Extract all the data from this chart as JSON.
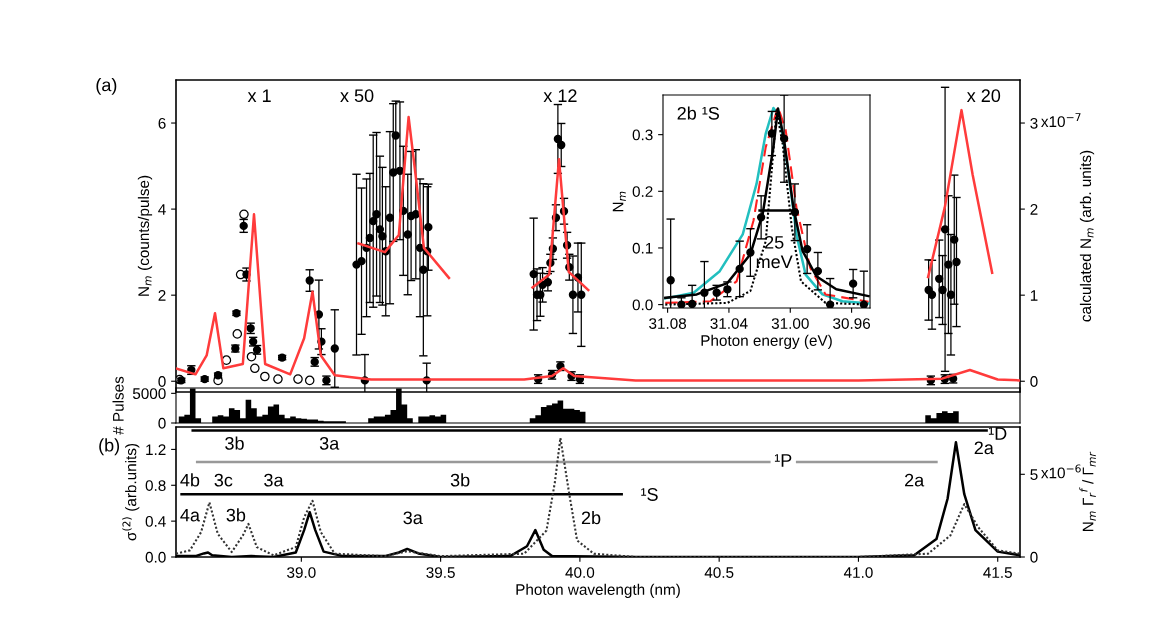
{
  "chart_data": [
    {
      "type": "scatter",
      "ylabel": "N$_{m}$ (counts/pulse)",
      "y2label": "calculated N$_{m}$ (arb. units)",
      "xlim": [
        38.55,
        41.58
      ],
      "ylim": [
        -0.25,
        7.0
      ],
      "yticks": [
        0,
        2,
        4,
        6
      ],
      "y2lim": [
        -0.125,
        3.5
      ],
      "y2ticks": [
        0,
        1,
        2,
        3
      ],
      "tick_labels": "y",
      "annotations": [
        "(a)",
        "x 1",
        "x 50",
        "x 12",
        "x 20",
        "x10$^{−7}$"
      ],
      "series": [
        {
          "type": "line",
          "axis": "y2",
          "color": "#ff3b3b",
          "marker": "none",
          "x": [
            38.55,
            38.62,
            38.66,
            38.69,
            38.72,
            38.79,
            38.83,
            38.87,
            38.96,
            39.01,
            39.04,
            39.07,
            39.12,
            39.25,
            39.5,
            39.8,
            39.9,
            39.94,
            39.98,
            40.2,
            41.0,
            41.3,
            41.4,
            41.5,
            41.58
          ],
          "values": [
            0.15,
            0.08,
            0.3,
            0.79,
            0.15,
            0.2,
            1.94,
            0.2,
            0.08,
            0.5,
            1.04,
            0.3,
            0.07,
            0.02,
            0.02,
            0.02,
            0.06,
            0.15,
            0.06,
            0.01,
            0.01,
            0.03,
            0.13,
            0.02,
            0.01
          ]
        },
        {
          "type": "line",
          "axis": "y2",
          "color": "#ff3b3b",
          "marker": "none",
          "x": [
            39.205,
            39.3,
            39.35,
            39.385,
            39.41,
            39.44,
            39.53
          ],
          "values": [
            1.6,
            1.5,
            1.7,
            3.07,
            2.4,
            1.55,
            1.2
          ]
        },
        {
          "type": "line",
          "axis": "y2",
          "color": "#ff3b3b",
          "marker": "none",
          "x": [
            39.83,
            39.89,
            39.925,
            39.96,
            40.03
          ],
          "values": [
            1.09,
            1.24,
            2.58,
            1.27,
            1.06
          ]
        },
        {
          "type": "line",
          "axis": "y2",
          "color": "#ff3b3b",
          "marker": "none",
          "x": [
            41.25,
            41.31,
            41.37,
            41.41,
            41.48
          ],
          "values": [
            1.21,
            2.02,
            3.15,
            2.4,
            1.26
          ]
        },
        {
          "type": "scatter",
          "color": "#ffffff",
          "marker": "circle",
          "x": [
            38.563,
            38.701,
            38.731,
            38.77,
            38.782,
            38.794,
            38.821,
            38.833,
            38.869,
            38.916,
            38.988,
            39.03
          ],
          "values": [
            0.04,
            0.02,
            0.49,
            1.1,
            2.48,
            3.88,
            0.57,
            0.3,
            0.11,
            0.05,
            0.05,
            0.02
          ]
        },
        {
          "type": "scatter",
          "color": "#000000",
          "marker": "circle",
          "x": [
            38.569,
            38.605,
            38.653,
            38.701,
            38.763,
            38.767,
            38.793,
            38.803,
            38.818,
            38.827,
            38.841,
            38.931,
            39.03,
            39.048,
            39.063,
            39.072,
            39.09,
            39.12,
            39.198,
            39.216,
            39.228,
            39.234,
            39.246,
            39.258,
            39.27,
            39.282,
            39.291,
            39.303,
            39.318,
            39.33,
            39.339,
            39.354,
            39.366,
            39.382,
            39.394,
            39.411,
            39.426,
            39.438,
            39.45,
            39.452,
            39.456,
            39.85,
            39.9,
            39.93,
            39.97,
            40.0,
            39.834,
            39.846,
            39.858,
            39.866,
            39.885,
            39.894,
            39.903,
            39.914,
            39.921,
            39.933,
            39.943,
            39.954,
            39.962,
            39.975,
            39.993,
            40.005,
            41.26,
            41.31,
            41.34,
            41.252,
            41.264,
            41.29,
            41.302,
            41.311,
            41.323,
            41.332,
            41.344,
            41.352
          ],
          "values": [
            0.02,
            0.26,
            0.05,
            0.14,
            0.76,
            1.58,
            3.61,
            2.48,
            1.23,
            0.92,
            0.73,
            0.55,
            2.34,
            0.45,
            1.55,
            0.92,
            0.02,
            0.76,
            2.71,
            2.79,
            0.02,
            3.1,
            3.33,
            3.72,
            3.88,
            3.53,
            3.37,
            3.02,
            3.8,
            4.85,
            5.71,
            4.89,
            3.96,
            3.41,
            3.84,
            3.88,
            3.1,
            2.59,
            0.02,
            3.02,
            3.58,
            0.05,
            0.15,
            0.35,
            0.12,
            0.05,
            2.49,
            2.01,
            2.01,
            2.24,
            2.3,
            2.75,
            3.08,
            3.8,
            5.63,
            5.49,
            3.95,
            3.16,
            2.65,
            2.01,
            2.41,
            2.01,
            0.02,
            0.05,
            0.06,
            2.12,
            2.01,
            2.38,
            2.12,
            3.53,
            2.71,
            2.01,
            3.29,
            2.77
          ],
          "errors": [
            0.05,
            0.1,
            0.05,
            0.05,
            0.08,
            0.05,
            0.15,
            0.15,
            0.12,
            0.1,
            0.1,
            0.05,
            0.25,
            0.1,
            0.8,
            0.3,
            0.1,
            0.9,
            2.1,
            1.7,
            0.6,
            1.6,
            1.5,
            2.0,
            1.9,
            1.7,
            1.6,
            1.5,
            2.0,
            1.6,
            0.8,
            1.6,
            1.5,
            1.4,
            1.5,
            1.5,
            1.6,
            2.0,
            0.4,
            1.5,
            1.0,
            0.1,
            0.1,
            0.1,
            0.1,
            0.1,
            1.3,
            0.6,
            0.5,
            0.4,
            0.2,
            0.2,
            0.25,
            0.3,
            0.8,
            0.5,
            0.3,
            0.3,
            0.3,
            0.9,
            0.8,
            1.2,
            0.1,
            0.1,
            0.1,
            0.7,
            0.8,
            0.9,
            0.8,
            3.3,
            1.6,
            1.4,
            1.5,
            1.5
          ]
        }
      ]
    },
    {
      "type": "histogram",
      "ylabel": "# Pulses",
      "color": "#000000",
      "xlim": [
        38.55,
        41.58
      ],
      "ylim": [
        0,
        5900
      ],
      "yticks": [
        0,
        5000
      ],
      "tick_labels": "y",
      "bins": [
        38.56,
        38.58,
        38.6,
        38.62,
        38.64,
        38.66,
        38.68,
        38.7,
        38.72,
        38.74,
        38.76,
        38.78,
        38.8,
        38.82,
        38.84,
        38.86,
        38.88,
        38.9,
        38.92,
        38.94,
        38.96,
        38.98,
        39.0,
        39.02,
        39.04,
        39.06,
        39.08,
        39.1,
        39.16,
        39.24,
        39.26,
        39.28,
        39.3,
        39.32,
        39.34,
        39.36,
        39.38,
        39.4,
        39.42,
        39.44,
        39.46,
        39.48,
        39.5,
        39.52,
        39.82,
        39.84,
        39.86,
        39.88,
        39.9,
        39.92,
        39.94,
        39.96,
        39.98,
        40.0,
        40.02,
        41.24,
        41.26,
        41.28,
        41.3,
        41.32,
        41.34,
        41.36
      ],
      "values": [
        1100,
        1400,
        5800,
        800,
        0,
        0,
        1100,
        1300,
        1100,
        2500,
        2200,
        800,
        3900,
        2500,
        1100,
        1400,
        2800,
        3100,
        1400,
        800,
        1100,
        800,
        700,
        600,
        600,
        400,
        300,
        300,
        0,
        800,
        1100,
        1100,
        1400,
        2200,
        5800,
        3100,
        800,
        0,
        1100,
        1100,
        1300,
        1100,
        1400,
        0,
        800,
        1300,
        2700,
        3000,
        3300,
        3800,
        2400,
        2400,
        2200,
        1900,
        0,
        1300,
        800,
        1700,
        2000,
        1700,
        2000
      ]
    },
    {
      "type": "line",
      "xlabel": "Photon energy (eV)",
      "ylabel": "N$_{m}$",
      "xlim": [
        31.083,
        30.948
      ],
      "ylim": [
        -0.006,
        0.37
      ],
      "xticks": [
        31.08,
        31.04,
        {
          "value": 31.0,
          "label": "31.00"
        },
        30.96
      ],
      "yticks": [
        {
          "value": 0,
          "label": "0.0"
        },
        0.1,
        0.2,
        0.3
      ],
      "annotations": [
        "2b ¹S",
        "25\nmeV"
      ],
      "series": [
        {
          "color": "#22bfbf",
          "line_style": "solid",
          "x": [
            31.0815,
            31.063,
            31.046,
            31.031,
            31.022,
            31.016,
            31.011,
            31.007,
            31.001,
            30.996,
            30.99,
            30.979,
            30.966,
            30.949
          ],
          "values": [
            0.011,
            0.021,
            0.059,
            0.124,
            0.213,
            0.302,
            0.347,
            0.331,
            0.231,
            0.124,
            0.053,
            0.018,
            0.006,
            0.002
          ]
        },
        {
          "color": "#ff2020",
          "line_style": "dashed",
          "x": [
            31.0815,
            31.052,
            31.035,
            31.024,
            31.016,
            31.008,
            31.003,
            30.996,
            30.987,
            30.977,
            30.949
          ],
          "values": [
            0.003,
            0.006,
            0.041,
            0.148,
            0.278,
            0.349,
            0.308,
            0.172,
            0.065,
            0.018,
            0.005
          ]
        },
        {
          "color": "#000000",
          "line_style": "solid",
          "x": [
            31.0815,
            31.061,
            31.041,
            31.026,
            31.018,
            31.011,
            31.008,
            31.004,
            30.998,
            30.992,
            30.983,
            30.97,
            30.949
          ],
          "values": [
            0.012,
            0.018,
            0.038,
            0.089,
            0.16,
            0.278,
            0.346,
            0.29,
            0.172,
            0.095,
            0.05,
            0.027,
            0.015
          ]
        },
        {
          "color": "#000000",
          "line_style": "dotted",
          "x": [
            31.0815,
            31.041,
            31.026,
            31.016,
            31.011,
            31.009,
            31.005,
            30.999,
            30.993,
            30.977,
            30.949
          ],
          "values": [
            0.0,
            0.003,
            0.024,
            0.112,
            0.272,
            0.343,
            0.284,
            0.136,
            0.041,
            0.003,
            0.0
          ]
        },
        {
          "color": "#000000",
          "line_style": "solid",
          "x": [
            31.02,
            30.999
          ],
          "values": [
            0.166,
            0.166
          ]
        },
        {
          "type": "scatter",
          "color": "#000000",
          "marker": "circle",
          "x": [
            31.078,
            31.071,
            31.064,
            31.056,
            31.048,
            31.041,
            31.033,
            31.026,
            31.019,
            31.012,
            31.004,
            30.997,
            30.989,
            30.982,
            30.974,
            30.959,
            30.952
          ],
          "values": [
            0.043,
            0.0,
            0.001,
            0.021,
            0.021,
            0.027,
            0.063,
            0.092,
            0.154,
            0.302,
            0.293,
            0.163,
            0.098,
            0.059,
            0.0,
            0.037,
            0.0
          ],
          "errors": [
            0.108,
            0.012,
            0.033,
            0.055,
            0.013,
            0.013,
            0.049,
            0.042,
            0.038,
            0.039,
            0.077,
            0.05,
            0.043,
            0.033,
            0.046,
            0.025,
            0.059
          ]
        }
      ]
    },
    {
      "type": "line",
      "xlabel": "Photon wavelength (nm)",
      "ylabel": "σ$^{(2)}$ (arb.units)",
      "y2label": "N$_{m}$ Γ$_{r}$$^{f}$ / Γ$_{mr}$",
      "xlim": [
        38.55,
        41.58
      ],
      "ylim": [
        0,
        1.45
      ],
      "y2lim": [
        0,
        7.86
      ],
      "xticks": [
        {
          "value": 39,
          "label": "39.0"
        },
        39.5,
        {
          "value": 40,
          "label": "40.0"
        },
        40.5,
        {
          "value": 41,
          "label": "41.0"
        },
        41.5
      ],
      "yticks": [
        {
          "value": 0,
          "label": "0.0"
        },
        0.4,
        0.8,
        1.2
      ],
      "y2ticks": [
        0,
        5
      ],
      "annotations": [
        "(b)",
        "3b",
        "3a",
        "2a",
        "¹D",
        "4b",
        "3c",
        "3a",
        "3b",
        "¹P",
        "2a",
        "4a",
        "3b",
        "3a",
        "2b",
        "¹S",
        "x10$^{−6}$"
      ],
      "series": [
        {
          "color": "#000000",
          "line_style": "solid",
          "x": [
            38.61,
            41.46
          ],
          "values": [
            1.41,
            1.41
          ]
        },
        {
          "color": "#999999",
          "line_style": "solid",
          "x": [
            38.626,
            40.68
          ],
          "values": [
            1.06,
            1.06
          ]
        },
        {
          "color": "#999999",
          "line_style": "solid",
          "x": [
            40.78,
            41.28
          ],
          "values": [
            1.06,
            1.06
          ]
        },
        {
          "color": "#000000",
          "line_style": "solid",
          "x": [
            38.57,
            40.15
          ],
          "values": [
            0.7,
            0.7
          ]
        },
        {
          "color": "#000000",
          "line_style": "solid",
          "x": [
            38.55,
            38.62,
            38.65,
            38.665,
            38.68,
            38.75,
            38.82,
            38.9,
            38.98,
            39.01,
            39.03,
            39.05,
            39.08,
            39.15,
            39.3,
            39.35,
            39.38,
            39.42,
            39.5,
            39.75,
            39.81,
            39.84,
            39.87,
            39.9,
            40.2,
            41.0,
            41.2,
            41.28,
            41.32,
            41.35,
            41.38,
            41.42,
            41.5,
            41.58
          ],
          "values": [
            0.01,
            0.01,
            0.04,
            0.05,
            0.02,
            0.0,
            0.01,
            0.0,
            0.05,
            0.3,
            0.5,
            0.3,
            0.06,
            0.01,
            0.01,
            0.05,
            0.09,
            0.04,
            0.0,
            0.01,
            0.12,
            0.3,
            0.08,
            0.01,
            0.0,
            0.0,
            0.02,
            0.2,
            0.65,
            1.28,
            0.7,
            0.3,
            0.06,
            0.02
          ]
        },
        {
          "color": "#333333",
          "line_style": "dotted",
          "axis": "y2",
          "x": [
            38.55,
            38.6,
            38.64,
            38.67,
            38.7,
            38.75,
            38.79,
            38.81,
            38.84,
            38.9,
            38.98,
            39.01,
            39.04,
            39.07,
            39.12,
            39.3,
            39.38,
            39.5,
            39.8,
            39.88,
            39.91,
            39.93,
            39.96,
            39.99,
            40.05,
            40.2,
            41.0,
            41.25,
            41.33,
            41.38,
            41.43,
            41.5,
            41.58
          ],
          "values": [
            0.2,
            0.4,
            1.5,
            3.3,
            1.4,
            0.3,
            1.3,
            2.0,
            0.6,
            0.1,
            0.6,
            2.4,
            3.4,
            1.5,
            0.2,
            0.05,
            0.35,
            0.05,
            0.2,
            1.6,
            4.5,
            7.2,
            4.0,
            1.0,
            0.2,
            0.0,
            0.0,
            0.2,
            1.3,
            3.2,
            1.8,
            0.4,
            0.2
          ]
        }
      ]
    }
  ]
}
